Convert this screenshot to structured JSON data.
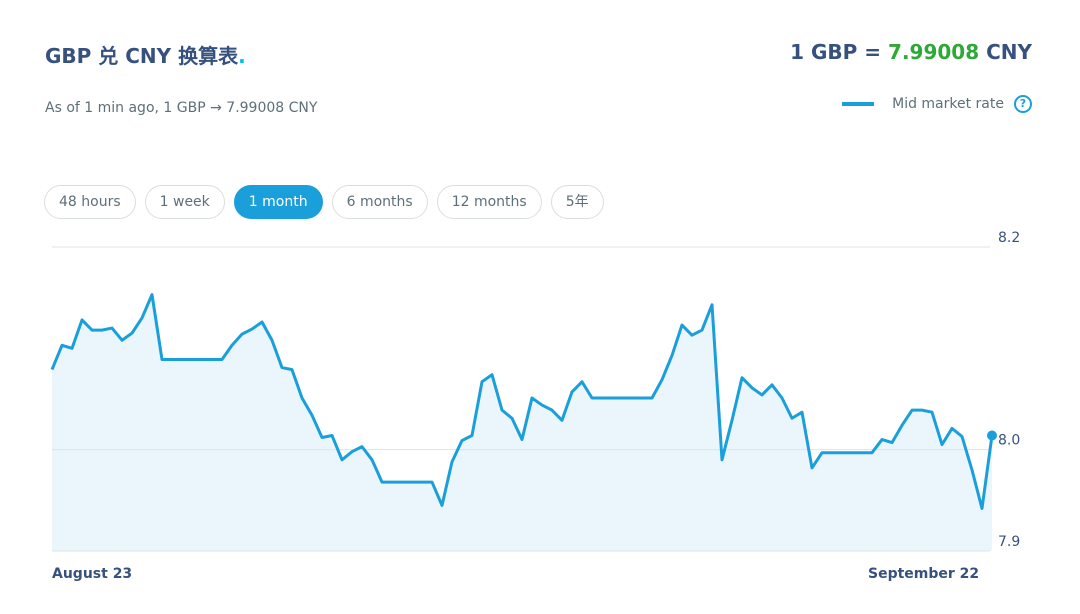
{
  "header": {
    "title": "GBP 兑 CNY 换算表",
    "title_dot": ".",
    "rate_prefix": "1 GBP =",
    "rate_value": "7.99008",
    "rate_suffix": "CNY",
    "subtitle": "As of 1 min ago, 1 GBP → 7.99008 CNY"
  },
  "legend": {
    "help": "?"
  },
  "ranges": {
    "options": [
      "48 hours",
      "1 week",
      "1 month",
      "6 months",
      "12 months",
      "5年"
    ],
    "active": 2
  },
  "chart_data": {
    "type": "line",
    "categories": [
      "August 23",
      null,
      null,
      null,
      null,
      null,
      null,
      null,
      null,
      null,
      null,
      null,
      null,
      null,
      null,
      null,
      null,
      null,
      null,
      null,
      null,
      null,
      null,
      null,
      null,
      null,
      null,
      null,
      null,
      null,
      null,
      null,
      null,
      null,
      null,
      null,
      null,
      null,
      null,
      null,
      null,
      null,
      null,
      null,
      null,
      null,
      null,
      null,
      null,
      null,
      null,
      null,
      null,
      null,
      null,
      null,
      null,
      null,
      null,
      null,
      null,
      null,
      null,
      null,
      null,
      null,
      null,
      null,
      null,
      null,
      null,
      null,
      null,
      null,
      null,
      null,
      null,
      null,
      null,
      null,
      null,
      null,
      "September 22",
      null,
      null,
      null,
      null,
      null,
      null,
      null,
      null,
      null,
      null,
      null,
      null
    ],
    "series": [
      {
        "name": "Mid market rate",
        "color": "#1a9fdb",
        "area_color": "#eaf5fc",
        "values": [
          8.079,
          8.103,
          8.1,
          8.128,
          8.118,
          8.118,
          8.12,
          8.108,
          8.115,
          8.13,
          8.153,
          8.089,
          8.089,
          8.089,
          8.089,
          8.089,
          8.089,
          8.089,
          8.103,
          8.114,
          8.119,
          8.126,
          8.108,
          8.081,
          8.079,
          8.051,
          8.034,
          8.012,
          8.014,
          7.99,
          7.998,
          8.003,
          7.99,
          7.968,
          7.968,
          7.968,
          7.968,
          7.968,
          7.968,
          7.945,
          7.988,
          8.009,
          8.014,
          8.067,
          8.074,
          8.039,
          8.031,
          8.01,
          8.051,
          8.044,
          8.039,
          8.029,
          8.057,
          8.067,
          8.051,
          8.051,
          8.051,
          8.051,
          8.051,
          8.051,
          8.051,
          8.069,
          8.093,
          8.123,
          8.113,
          8.118,
          8.143,
          7.99,
          8.029,
          8.071,
          8.061,
          8.054,
          8.064,
          8.051,
          8.031,
          8.037,
          7.982,
          7.997,
          7.997,
          7.997,
          7.997,
          7.997,
          7.997,
          8.01,
          8.007,
          8.024,
          8.039,
          8.039,
          8.037,
          8.005,
          8.021,
          8.013,
          7.98,
          7.942,
          8.014
        ]
      }
    ],
    "ylim": [
      7.9,
      8.2
    ],
    "yticks": [
      7.9,
      {
        "value": 8,
        "label": "8.0"
      },
      8.2
    ],
    "grid": true
  }
}
